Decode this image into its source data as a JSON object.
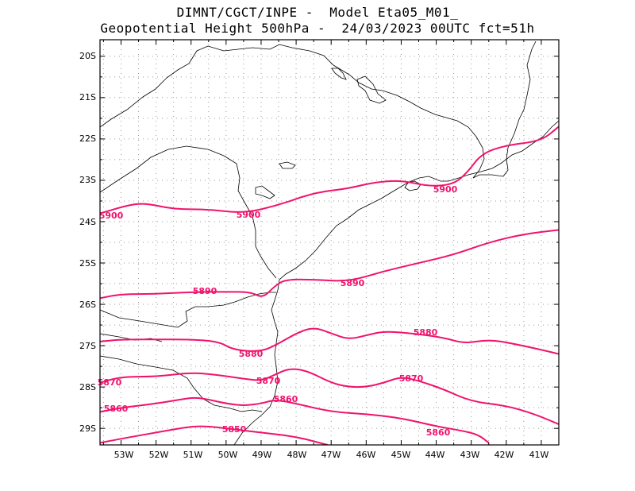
{
  "title": {
    "line1": "DIMNT/CGCT/INPE -  Model Eta05_M01_",
    "line2": "Geopotential Height 500hPa -  24/03/2023 00UTC fct=51h"
  },
  "colors": {
    "contour": "#f0136c",
    "coast": "#000000",
    "grid": "#9a9a9a"
  },
  "axes": {
    "lon_labels": [
      "53W",
      "52W",
      "51W",
      "50W",
      "49W",
      "48W",
      "47W",
      "46W",
      "45W",
      "44W",
      "43W",
      "42W",
      "41W"
    ],
    "lat_labels": [
      "20S",
      "21S",
      "22S",
      "23S",
      "24S",
      "25S",
      "26S",
      "27S",
      "28S",
      "29S"
    ]
  },
  "contour_labels": {
    "c5900": [
      "5900",
      "5900",
      "5900"
    ],
    "c5890": [
      "5890",
      "5890"
    ],
    "c5880": [
      "5880",
      "5880"
    ],
    "c5870": [
      "5870",
      "5870",
      "5870"
    ],
    "c5860": [
      "5860",
      "5860",
      "5860"
    ],
    "c5850": [
      "5850"
    ]
  },
  "chart_data": {
    "type": "contour",
    "variable": "Geopotential Height 500hPa",
    "lon_range": [
      -53.6,
      -40.5
    ],
    "lat_range": [
      -29.4,
      -19.6
    ],
    "grid": true,
    "contours": [
      {
        "level": 5900,
        "points": [
          [
            -53.6,
            -23.8
          ],
          [
            -52.8,
            -23.6
          ],
          [
            -52.3,
            -23.55
          ],
          [
            -51.5,
            -23.7
          ],
          [
            -50.5,
            -23.7
          ],
          [
            -49.5,
            -23.8
          ],
          [
            -48.5,
            -23.6
          ],
          [
            -47.5,
            -23.3
          ],
          [
            -46.5,
            -23.2
          ],
          [
            -45.8,
            -23.05
          ],
          [
            -45.0,
            -23.0
          ],
          [
            -44.2,
            -23.15
          ],
          [
            -43.5,
            -23.1
          ],
          [
            -43.1,
            -22.8
          ],
          [
            -42.7,
            -22.35
          ],
          [
            -42.0,
            -22.15
          ],
          [
            -41.0,
            -22.05
          ],
          [
            -40.5,
            -21.7
          ]
        ]
      },
      {
        "level": 5890,
        "points": [
          [
            -53.6,
            -25.85
          ],
          [
            -53.0,
            -25.75
          ],
          [
            -52.0,
            -25.75
          ],
          [
            -51.0,
            -25.7
          ],
          [
            -50.0,
            -25.7
          ],
          [
            -49.3,
            -25.7
          ],
          [
            -48.95,
            -25.85
          ],
          [
            -48.6,
            -25.55
          ],
          [
            -48.3,
            -25.4
          ],
          [
            -47.5,
            -25.4
          ],
          [
            -46.5,
            -25.45
          ],
          [
            -45.5,
            -25.2
          ],
          [
            -44.5,
            -25.0
          ],
          [
            -43.5,
            -24.8
          ],
          [
            -42.5,
            -24.5
          ],
          [
            -41.5,
            -24.3
          ],
          [
            -40.5,
            -24.2
          ]
        ]
      },
      {
        "level": 5880,
        "points": [
          [
            -53.6,
            -26.9
          ],
          [
            -53.0,
            -26.85
          ],
          [
            -52.0,
            -26.85
          ],
          [
            -51.0,
            -26.85
          ],
          [
            -50.2,
            -26.9
          ],
          [
            -49.8,
            -27.1
          ],
          [
            -49.0,
            -27.15
          ],
          [
            -48.5,
            -26.95
          ],
          [
            -48.0,
            -26.7
          ],
          [
            -47.5,
            -26.55
          ],
          [
            -47.0,
            -26.7
          ],
          [
            -46.5,
            -26.85
          ],
          [
            -46.0,
            -26.75
          ],
          [
            -45.5,
            -26.65
          ],
          [
            -44.7,
            -26.7
          ],
          [
            -43.8,
            -26.8
          ],
          [
            -43.2,
            -26.95
          ],
          [
            -42.5,
            -26.85
          ],
          [
            -41.8,
            -26.95
          ],
          [
            -41.0,
            -27.1
          ],
          [
            -40.5,
            -27.2
          ]
        ]
      },
      {
        "level": 5870,
        "points": [
          [
            -53.6,
            -27.9
          ],
          [
            -53.0,
            -27.75
          ],
          [
            -52.0,
            -27.75
          ],
          [
            -51.0,
            -27.65
          ],
          [
            -50.3,
            -27.7
          ],
          [
            -49.5,
            -27.8
          ],
          [
            -49.0,
            -27.85
          ],
          [
            -48.6,
            -27.7
          ],
          [
            -48.2,
            -27.55
          ],
          [
            -47.7,
            -27.6
          ],
          [
            -47.0,
            -27.9
          ],
          [
            -46.5,
            -28.0
          ],
          [
            -46.0,
            -28.0
          ],
          [
            -45.5,
            -27.9
          ],
          [
            -45.0,
            -27.75
          ],
          [
            -44.5,
            -27.85
          ],
          [
            -43.8,
            -28.05
          ],
          [
            -43.0,
            -28.35
          ],
          [
            -42.0,
            -28.45
          ],
          [
            -41.2,
            -28.65
          ],
          [
            -40.5,
            -28.9
          ]
        ]
      },
      {
        "level": 5860,
        "points": [
          [
            -53.6,
            -28.6
          ],
          [
            -53.0,
            -28.5
          ],
          [
            -52.0,
            -28.4
          ],
          [
            -51.3,
            -28.3
          ],
          [
            -50.9,
            -28.25
          ],
          [
            -50.5,
            -28.3
          ],
          [
            -50.0,
            -28.4
          ],
          [
            -49.5,
            -28.45
          ],
          [
            -49.0,
            -28.4
          ],
          [
            -48.6,
            -28.3
          ],
          [
            -48.0,
            -28.4
          ],
          [
            -47.0,
            -28.6
          ],
          [
            -46.0,
            -28.65
          ],
          [
            -45.0,
            -28.75
          ],
          [
            -44.0,
            -28.95
          ],
          [
            -43.3,
            -29.05
          ],
          [
            -42.8,
            -29.15
          ],
          [
            -42.5,
            -29.35
          ]
        ]
      },
      {
        "level": 5850,
        "points": [
          [
            -53.6,
            -29.35
          ],
          [
            -53.0,
            -29.25
          ],
          [
            -52.0,
            -29.1
          ],
          [
            -51.0,
            -28.95
          ],
          [
            -50.5,
            -28.95
          ],
          [
            -50.0,
            -29.0
          ],
          [
            -49.5,
            -29.05
          ],
          [
            -49.0,
            -29.1
          ],
          [
            -48.0,
            -29.2
          ],
          [
            -47.1,
            -29.4
          ]
        ]
      }
    ]
  }
}
